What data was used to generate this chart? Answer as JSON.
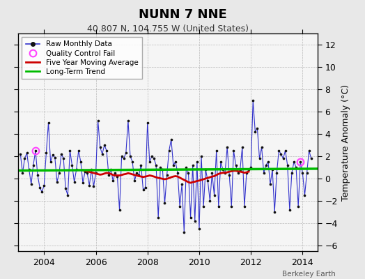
{
  "title": "NUNN 7 NNE",
  "subtitle": "40.807 N, 104.755 W (United States)",
  "ylabel": "Temperature Anomaly (°C)",
  "attribution": "Berkeley Earth",
  "ylim": [
    -6.5,
    13.0
  ],
  "yticks": [
    -6,
    -4,
    -2,
    0,
    2,
    4,
    6,
    8,
    10,
    12
  ],
  "xlim": [
    2003.0,
    2014.58
  ],
  "xticks": [
    2004,
    2006,
    2008,
    2010,
    2012,
    2014
  ],
  "bg_color": "#e8e8e8",
  "plot_bg_color": "#f5f5f5",
  "line_color": "#3333cc",
  "marker_color": "#111111",
  "moving_avg_color": "#cc0000",
  "trend_color": "#00bb00",
  "qc_fail_color": "#ff44ff",
  "raw_data": [
    2003.083,
    2.2,
    2003.167,
    0.5,
    2003.25,
    1.8,
    2003.333,
    2.3,
    2003.417,
    0.8,
    2003.5,
    -0.5,
    2003.583,
    1.2,
    2003.667,
    2.5,
    2003.75,
    0.3,
    2003.833,
    -0.8,
    2003.917,
    -1.2,
    2004.0,
    -0.6,
    2004.083,
    2.3,
    2004.167,
    5.0,
    2004.25,
    1.5,
    2004.333,
    2.1,
    2004.417,
    1.9,
    2004.5,
    -0.3,
    2004.583,
    0.5,
    2004.667,
    2.2,
    2004.75,
    1.8,
    2004.833,
    -0.9,
    2004.917,
    -1.5,
    2005.0,
    2.5,
    2005.083,
    1.2,
    2005.167,
    -0.3,
    2005.25,
    0.8,
    2005.333,
    2.5,
    2005.417,
    1.5,
    2005.5,
    -0.4,
    2005.583,
    0.6,
    2005.667,
    0.5,
    2005.75,
    -0.6,
    2005.833,
    0.8,
    2005.917,
    -0.7,
    2006.0,
    0.5,
    2006.083,
    5.2,
    2006.167,
    2.8,
    2006.25,
    2.2,
    2006.333,
    3.0,
    2006.417,
    2.5,
    2006.5,
    0.3,
    2006.583,
    0.8,
    2006.667,
    -0.2,
    2006.75,
    0.5,
    2006.833,
    0.2,
    2006.917,
    -2.8,
    2007.0,
    2.0,
    2007.083,
    1.8,
    2007.167,
    2.3,
    2007.25,
    5.2,
    2007.333,
    2.0,
    2007.417,
    1.5,
    2007.5,
    -0.2,
    2007.583,
    0.5,
    2007.667,
    0.3,
    2007.75,
    1.2,
    2007.833,
    -1.0,
    2007.917,
    -0.8,
    2008.0,
    5.0,
    2008.083,
    1.5,
    2008.167,
    2.0,
    2008.25,
    1.8,
    2008.333,
    1.2,
    2008.417,
    -3.5,
    2008.5,
    1.0,
    2008.583,
    0.8,
    2008.667,
    -2.2,
    2008.75,
    0.3,
    2008.833,
    2.5,
    2008.917,
    3.5,
    2009.0,
    1.2,
    2009.083,
    1.5,
    2009.167,
    0.5,
    2009.25,
    -2.5,
    2009.333,
    -0.5,
    2009.417,
    -4.8,
    2009.5,
    1.0,
    2009.583,
    0.5,
    2009.667,
    -3.5,
    2009.75,
    1.2,
    2009.833,
    -3.8,
    2009.917,
    1.5,
    2010.0,
    -4.5,
    2010.083,
    2.0,
    2010.167,
    -2.5,
    2010.25,
    0.8,
    2010.333,
    -0.2,
    2010.417,
    -2.0,
    2010.5,
    0.5,
    2010.583,
    -1.5,
    2010.667,
    2.5,
    2010.75,
    -2.5,
    2010.833,
    1.5,
    2010.917,
    0.8,
    2011.0,
    0.5,
    2011.083,
    2.8,
    2011.167,
    0.3,
    2011.25,
    -2.5,
    2011.333,
    2.5,
    2011.417,
    1.2,
    2011.5,
    0.5,
    2011.583,
    0.8,
    2011.667,
    2.8,
    2011.75,
    -2.5,
    2011.833,
    0.5,
    2011.917,
    0.8,
    2012.0,
    1.0,
    2012.083,
    7.0,
    2012.167,
    4.2,
    2012.25,
    4.5,
    2012.333,
    1.8,
    2012.417,
    2.8,
    2012.5,
    0.5,
    2012.583,
    1.2,
    2012.667,
    1.5,
    2012.75,
    -0.5,
    2012.833,
    0.8,
    2012.917,
    -3.0,
    2013.0,
    0.5,
    2013.083,
    2.5,
    2013.167,
    2.2,
    2013.25,
    1.8,
    2013.333,
    2.5,
    2013.417,
    1.2,
    2013.5,
    -2.8,
    2013.583,
    0.5,
    2013.667,
    1.5,
    2013.75,
    1.0,
    2013.833,
    -2.5,
    2013.917,
    1.5,
    2014.0,
    0.5,
    2014.083,
    -1.5,
    2014.167,
    0.5,
    2014.25,
    2.5,
    2014.333,
    1.8
  ],
  "qc_fail_points": [
    [
      2003.667,
      2.5
    ],
    [
      2013.917,
      1.5
    ]
  ],
  "moving_avg": [
    2005.5,
    0.75,
    2005.583,
    0.7,
    2005.667,
    0.65,
    2005.75,
    0.6,
    2005.833,
    0.55,
    2005.917,
    0.5,
    2006.0,
    0.45,
    2006.083,
    0.4,
    2006.167,
    0.35,
    2006.25,
    0.38,
    2006.333,
    0.45,
    2006.417,
    0.5,
    2006.5,
    0.48,
    2006.583,
    0.42,
    2006.667,
    0.32,
    2006.75,
    0.28,
    2006.833,
    0.28,
    2006.917,
    0.28,
    2007.0,
    0.32,
    2007.083,
    0.38,
    2007.167,
    0.42,
    2007.25,
    0.48,
    2007.333,
    0.44,
    2007.417,
    0.38,
    2007.5,
    0.32,
    2007.583,
    0.28,
    2007.667,
    0.22,
    2007.75,
    0.18,
    2007.833,
    0.14,
    2007.917,
    0.18,
    2008.0,
    0.22,
    2008.083,
    0.28,
    2008.167,
    0.24,
    2008.25,
    0.18,
    2008.333,
    0.12,
    2008.417,
    0.06,
    2008.5,
    0.02,
    2008.583,
    -0.02,
    2008.667,
    -0.06,
    2008.75,
    -0.02,
    2008.833,
    0.04,
    2008.917,
    0.12,
    2009.0,
    0.18,
    2009.083,
    0.22,
    2009.167,
    0.18,
    2009.25,
    0.08,
    2009.333,
    -0.02,
    2009.417,
    -0.12,
    2009.5,
    -0.22,
    2009.583,
    -0.32,
    2009.667,
    -0.38,
    2009.75,
    -0.32,
    2009.833,
    -0.28,
    2009.917,
    -0.22,
    2010.0,
    -0.18,
    2010.083,
    -0.12,
    2010.167,
    -0.06,
    2010.25,
    0.0,
    2010.333,
    0.06,
    2010.417,
    0.12,
    2010.5,
    0.18,
    2010.583,
    0.22,
    2010.667,
    0.32,
    2010.75,
    0.42,
    2010.833,
    0.48,
    2010.917,
    0.52,
    2011.0,
    0.52,
    2011.083,
    0.56,
    2011.167,
    0.62,
    2011.25,
    0.66,
    2011.333,
    0.7,
    2011.417,
    0.7,
    2011.5,
    0.66,
    2011.583,
    0.62,
    2011.667,
    0.58,
    2011.75,
    0.52,
    2011.833,
    0.56,
    2011.917,
    0.62
  ],
  "trend_x": [
    2003.0,
    2014.58
  ],
  "trend_y": [
    0.72,
    0.88
  ]
}
